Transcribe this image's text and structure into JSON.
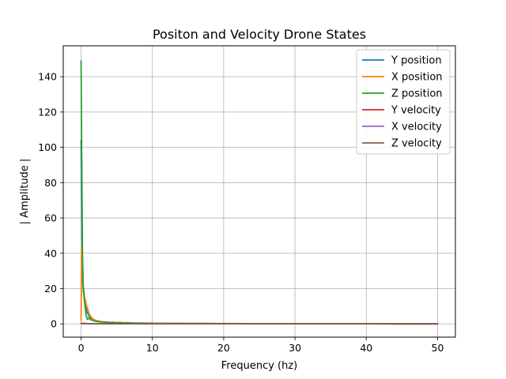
{
  "chart_data": {
    "type": "line",
    "title": "Positon and Velocity Drone States",
    "xlabel": "Frequency (hz)",
    "ylabel": "| Amplitude |",
    "xlim": [
      -2.5,
      52.5
    ],
    "ylim": [
      -7.5,
      157.5
    ],
    "xticks": [
      0,
      10,
      20,
      30,
      40,
      50
    ],
    "yticks": [
      0,
      20,
      40,
      60,
      80,
      100,
      120,
      140
    ],
    "grid": true,
    "legend_position": "top-right",
    "series": [
      {
        "name": "Y position",
        "color": "#1f77b4",
        "x": [
          0,
          0.15,
          0.3,
          0.5,
          0.8,
          1.2,
          1.6,
          2,
          2.5,
          3,
          3.5,
          4,
          5,
          6,
          7,
          8,
          10,
          12,
          15,
          20,
          25,
          30,
          40,
          50
        ],
        "y": [
          104,
          40,
          22,
          14,
          7,
          4,
          2.8,
          2,
          1.5,
          1.2,
          1,
          0.8,
          0.6,
          0.5,
          0.4,
          0.35,
          0.3,
          0.25,
          0.2,
          0.15,
          0.12,
          0.1,
          0.08,
          0.05
        ]
      },
      {
        "name": "X position",
        "color": "#ff7f0e",
        "x": [
          0,
          0.1,
          0.2,
          0.35,
          0.5,
          0.8,
          1.2,
          1.6,
          2,
          2.5,
          3,
          3.5,
          4,
          5,
          6,
          7,
          8,
          10,
          12,
          15,
          20,
          25,
          30,
          40,
          50
        ],
        "y": [
          2,
          45,
          26,
          18,
          15,
          10,
          5,
          3,
          2,
          1.6,
          1.2,
          1,
          0.8,
          0.6,
          0.5,
          0.4,
          0.35,
          0.3,
          0.25,
          0.2,
          0.15,
          0.12,
          0.1,
          0.08,
          0.05
        ]
      },
      {
        "name": "Z position",
        "color": "#2ca02c",
        "x": [
          0,
          0.1,
          0.2,
          0.3,
          0.5,
          0.7,
          0.9,
          1.1,
          1.3,
          1.6,
          2,
          2.5,
          3,
          3.5,
          4,
          4.5,
          5,
          5.5,
          6,
          6.5,
          7,
          8,
          9,
          10,
          12,
          15,
          20,
          25,
          30,
          40,
          50
        ],
        "y": [
          149,
          90,
          40,
          20,
          12,
          5,
          2.5,
          3.5,
          2.5,
          2,
          1.5,
          1.2,
          1,
          1.1,
          0.8,
          0.9,
          0.7,
          0.8,
          0.6,
          0.7,
          0.5,
          0.5,
          0.4,
          0.35,
          0.3,
          0.25,
          0.2,
          0.15,
          0.12,
          0.1,
          0.05
        ]
      },
      {
        "name": "Y velocity",
        "color": "#d62728",
        "x": [
          0,
          0.2,
          0.5,
          1,
          2,
          5,
          10,
          20,
          30,
          40,
          50
        ],
        "y": [
          0.3,
          0.25,
          0.2,
          0.15,
          0.1,
          0.08,
          0.06,
          0.05,
          0.04,
          0.03,
          0.02
        ]
      },
      {
        "name": "X velocity",
        "color": "#9467bd",
        "x": [
          0,
          0.2,
          0.5,
          1,
          2,
          5,
          10,
          20,
          30,
          40,
          50
        ],
        "y": [
          0.3,
          0.25,
          0.2,
          0.15,
          0.1,
          0.08,
          0.06,
          0.05,
          0.04,
          0.03,
          0.02
        ]
      },
      {
        "name": "Z velocity",
        "color": "#8c564b",
        "x": [
          0,
          0.2,
          0.5,
          1,
          2,
          5,
          10,
          20,
          30,
          40,
          50
        ],
        "y": [
          0.3,
          0.25,
          0.2,
          0.15,
          0.1,
          0.08,
          0.06,
          0.05,
          0.04,
          0.03,
          0.02
        ]
      }
    ]
  }
}
